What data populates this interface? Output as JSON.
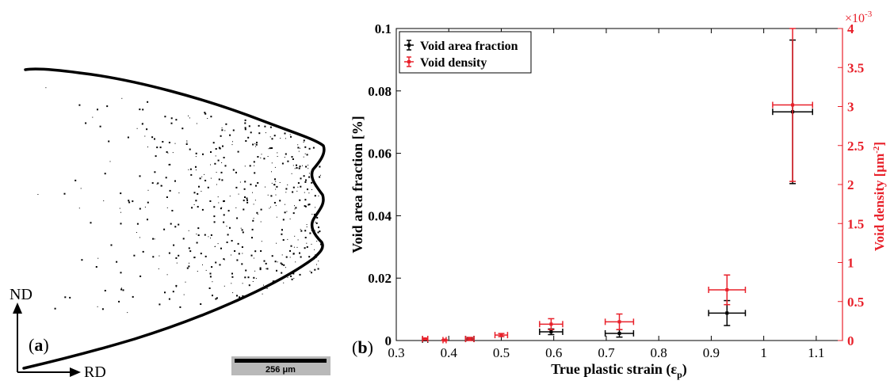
{
  "panel_a": {
    "label_prefix": "(",
    "label_letter": "a",
    "label_suffix": ")",
    "axis_vertical": "ND",
    "axis_horizontal": "RD",
    "scale_bar": "256 μm"
  },
  "panel_b": {
    "label_prefix": "(",
    "label_letter": "b",
    "label_suffix": ")"
  },
  "colors": {
    "left_series": "#000000",
    "right_series": "#e8202a",
    "right_axis": "#e8202a"
  },
  "chart_data": {
    "type": "scatter",
    "xlabel": "True plastic strain (ε",
    "xlabel_sub": "p",
    "xlabel_close": ")",
    "ylabel_left": "Void area fraction [%]",
    "ylabel_right": "Void density [μm",
    "ylabel_right_sup": "-2",
    "ylabel_right_close": "]",
    "right_axis_multiplier": "×10",
    "right_axis_multiplier_exp": "-3",
    "xlim": [
      0.3,
      1.15
    ],
    "ylim_left": [
      0,
      0.1
    ],
    "ylim_right": [
      0,
      0.004
    ],
    "x_ticks": [
      "0.3",
      "0.4",
      "0.5",
      "0.6",
      "0.7",
      "0.8",
      "0.9",
      "1",
      "1.1"
    ],
    "y_left_ticks": [
      "0",
      "0.02",
      "0.04",
      "0.06",
      "0.08",
      "0.1"
    ],
    "y_right_ticks": [
      "0",
      "0.5",
      "1",
      "1.5",
      "2",
      "2.5",
      "3",
      "3.5",
      "4"
    ],
    "legend_position": "top-left",
    "series": [
      {
        "name": "Void area fraction",
        "axis": "left",
        "points": [
          {
            "x": 0.355,
            "y": 0.0003,
            "xerr": 0.005,
            "yerr": 0.0003
          },
          {
            "x": 0.44,
            "y": 0.0005,
            "xerr": 0.008,
            "yerr": 0.0004
          },
          {
            "x": 0.595,
            "y": 0.0028,
            "xerr": 0.022,
            "yerr": 0.0009
          },
          {
            "x": 0.725,
            "y": 0.0023,
            "xerr": 0.027,
            "yerr": 0.0012
          },
          {
            "x": 0.93,
            "y": 0.0088,
            "xerr": 0.035,
            "yerr": 0.004
          },
          {
            "x": 1.055,
            "y": 0.0733,
            "xerr": 0.038,
            "yerr": 0.023
          }
        ]
      },
      {
        "name": "Void density",
        "axis": "right",
        "points": [
          {
            "x": 0.355,
            "y": 2e-05,
            "xerr": 0.005,
            "yerr": 1e-05
          },
          {
            "x": 0.392,
            "y": 5e-06,
            "xerr": 0.003,
            "yerr": 5e-06
          },
          {
            "x": 0.44,
            "y": 2e-05,
            "xerr": 0.008,
            "yerr": 2e-05
          },
          {
            "x": 0.5,
            "y": 7e-05,
            "xerr": 0.012,
            "yerr": 2e-05
          },
          {
            "x": 0.595,
            "y": 0.00021,
            "xerr": 0.022,
            "yerr": 7e-05
          },
          {
            "x": 0.725,
            "y": 0.00024,
            "xerr": 0.027,
            "yerr": 0.0001
          },
          {
            "x": 0.93,
            "y": 0.00065,
            "xerr": 0.035,
            "yerr": 0.00019
          },
          {
            "x": 1.055,
            "y": 0.00302,
            "xerr": 0.038,
            "yerr": 0.00098
          }
        ]
      }
    ]
  }
}
